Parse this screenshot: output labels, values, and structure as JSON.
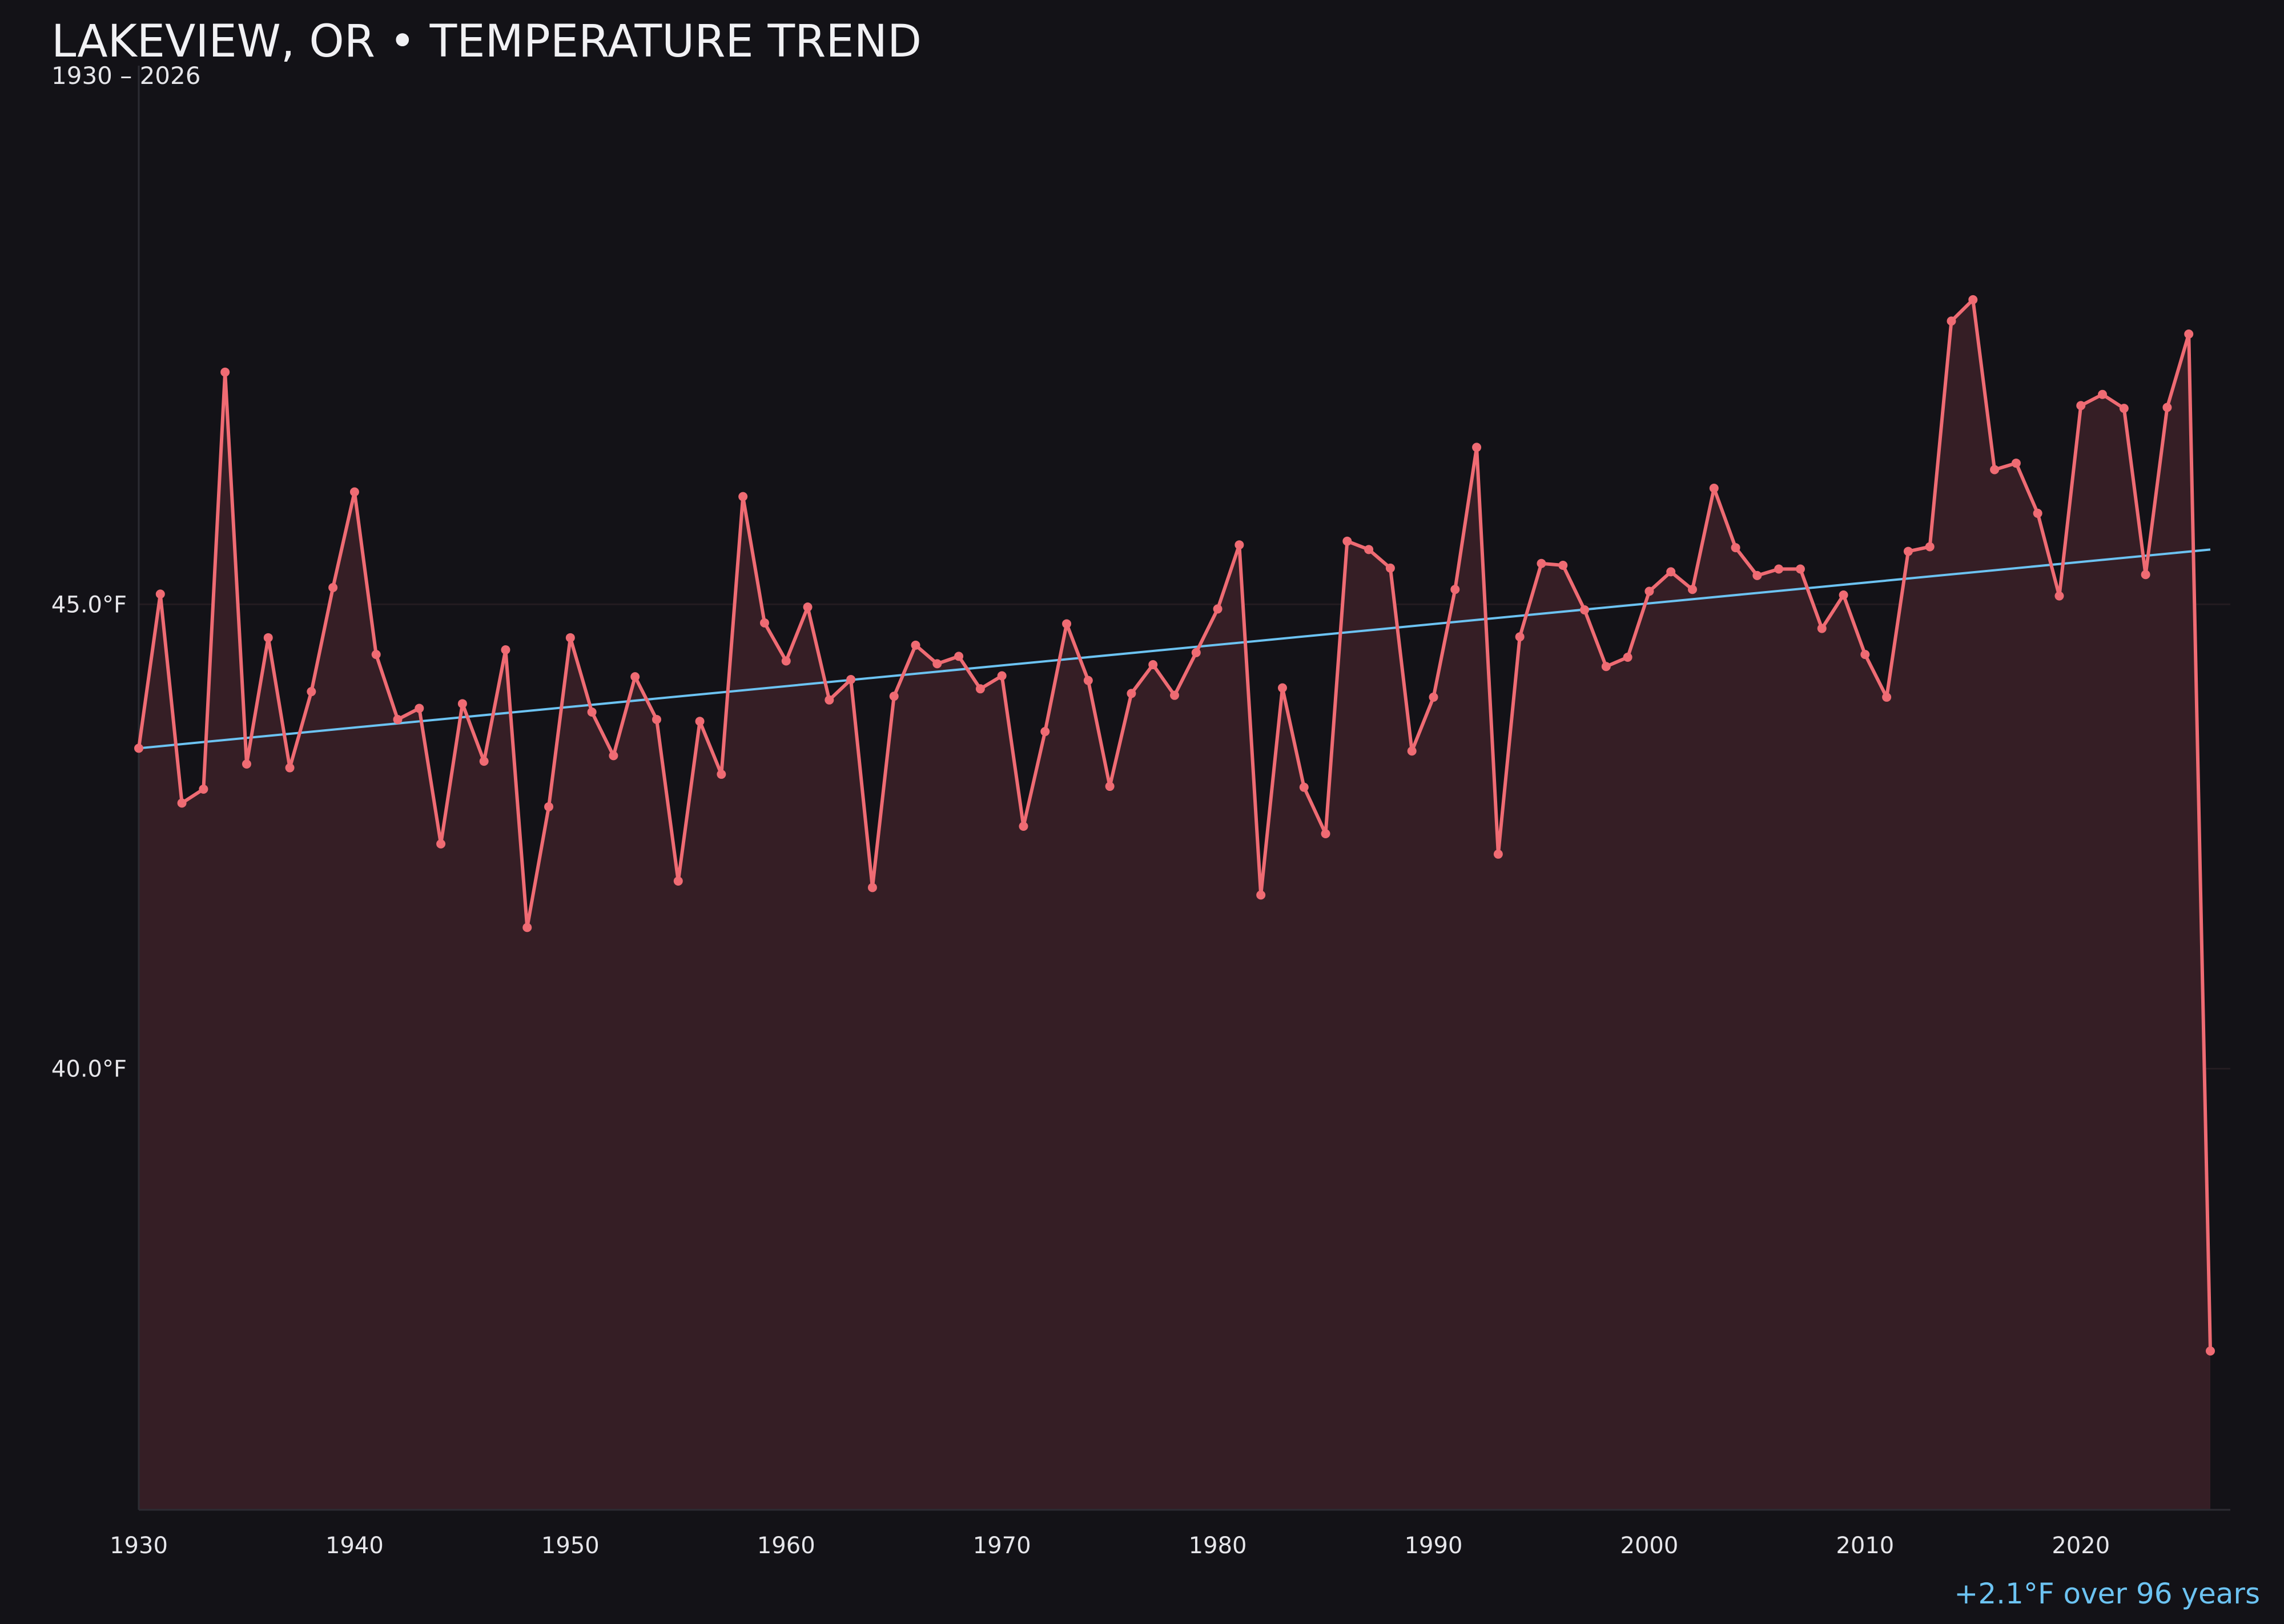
{
  "chart_data": {
    "type": "area",
    "title": "LAKEVIEW, OR • TEMPERATURE TREND",
    "subtitle": "1930 – 2026",
    "annotation": "+2.1°F over 96 years",
    "xlabel": "",
    "ylabel": "",
    "xlim": [
      1930,
      2026
    ],
    "ylim": [
      35.25,
      50.8
    ],
    "x_ticks": [
      1930,
      1940,
      1950,
      1960,
      1970,
      1980,
      1990,
      2000,
      2010,
      2020
    ],
    "x_tick_labels": [
      "1930",
      "1940",
      "1950",
      "1960",
      "1970",
      "1980",
      "1990",
      "2000",
      "2010",
      "2020"
    ],
    "y_ticks": [
      40.0,
      45.0
    ],
    "y_tick_labels": [
      "40.0°F",
      "45.0°F"
    ],
    "grid": "horizontal",
    "legend": "none",
    "colors": {
      "background": "#131217",
      "line": "#ef6b73",
      "fill": "#351e25",
      "trend": "#6cc3f2",
      "grid": "#241c21",
      "axis": "#2c2c33",
      "text": "#e6e6ea"
    },
    "series": [
      {
        "x": [
          1930,
          1931,
          1932,
          1933,
          1934,
          1935,
          1936,
          1937,
          1938,
          1939,
          1940,
          1941,
          1942,
          1943,
          1944,
          1945,
          1946,
          1947,
          1948,
          1949,
          1950,
          1951,
          1952,
          1953,
          1954,
          1955,
          1956,
          1957,
          1958,
          1959,
          1960,
          1961,
          1962,
          1963,
          1964,
          1965,
          1966,
          1967,
          1968,
          1969,
          1970,
          1971,
          1972,
          1973,
          1974,
          1975,
          1976,
          1977,
          1978,
          1979,
          1980,
          1981,
          1982,
          1983,
          1984,
          1985,
          1986,
          1987,
          1988,
          1989,
          1990,
          1991,
          1992,
          1993,
          1994,
          1995,
          1996,
          1997,
          1998,
          1999,
          2000,
          2001,
          2002,
          2003,
          2004,
          2005,
          2006,
          2007,
          2008,
          2009,
          2010,
          2011,
          2012,
          2013,
          2014,
          2015,
          2016,
          2017,
          2018,
          2019,
          2020,
          2021,
          2022,
          2023,
          2024,
          2025,
          2026
        ],
        "values": [
          43.45,
          45.11,
          42.86,
          43.01,
          47.5,
          43.28,
          44.64,
          43.24,
          44.06,
          45.18,
          46.21,
          44.46,
          43.76,
          43.88,
          42.42,
          43.93,
          43.31,
          44.51,
          41.52,
          42.82,
          44.64,
          43.84,
          43.37,
          44.22,
          43.76,
          42.02,
          43.74,
          43.17,
          46.16,
          44.8,
          44.39,
          44.97,
          43.97,
          44.19,
          41.95,
          44.01,
          44.56,
          44.36,
          44.44,
          44.09,
          44.23,
          42.61,
          43.63,
          44.79,
          44.18,
          43.04,
          44.04,
          44.35,
          44.02,
          44.48,
          44.95,
          45.64,
          41.87,
          44.1,
          43.03,
          42.53,
          45.68,
          45.59,
          45.39,
          43.42,
          44.0,
          45.16,
          46.69,
          42.31,
          44.65,
          45.44,
          45.42,
          44.94,
          44.33,
          44.43,
          45.14,
          45.35,
          45.16,
          46.25,
          45.61,
          45.31,
          45.38,
          45.38,
          44.74,
          45.1,
          44.46,
          44.0,
          45.57,
          45.62,
          48.05,
          48.28,
          46.45,
          46.52,
          45.98,
          45.09,
          47.14,
          47.26,
          47.11,
          45.32,
          47.12,
          47.91,
          36.96
        ]
      }
    ],
    "trend_line": {
      "x": [
        1930,
        2026
      ],
      "values": [
        43.45,
        45.59
      ]
    }
  }
}
